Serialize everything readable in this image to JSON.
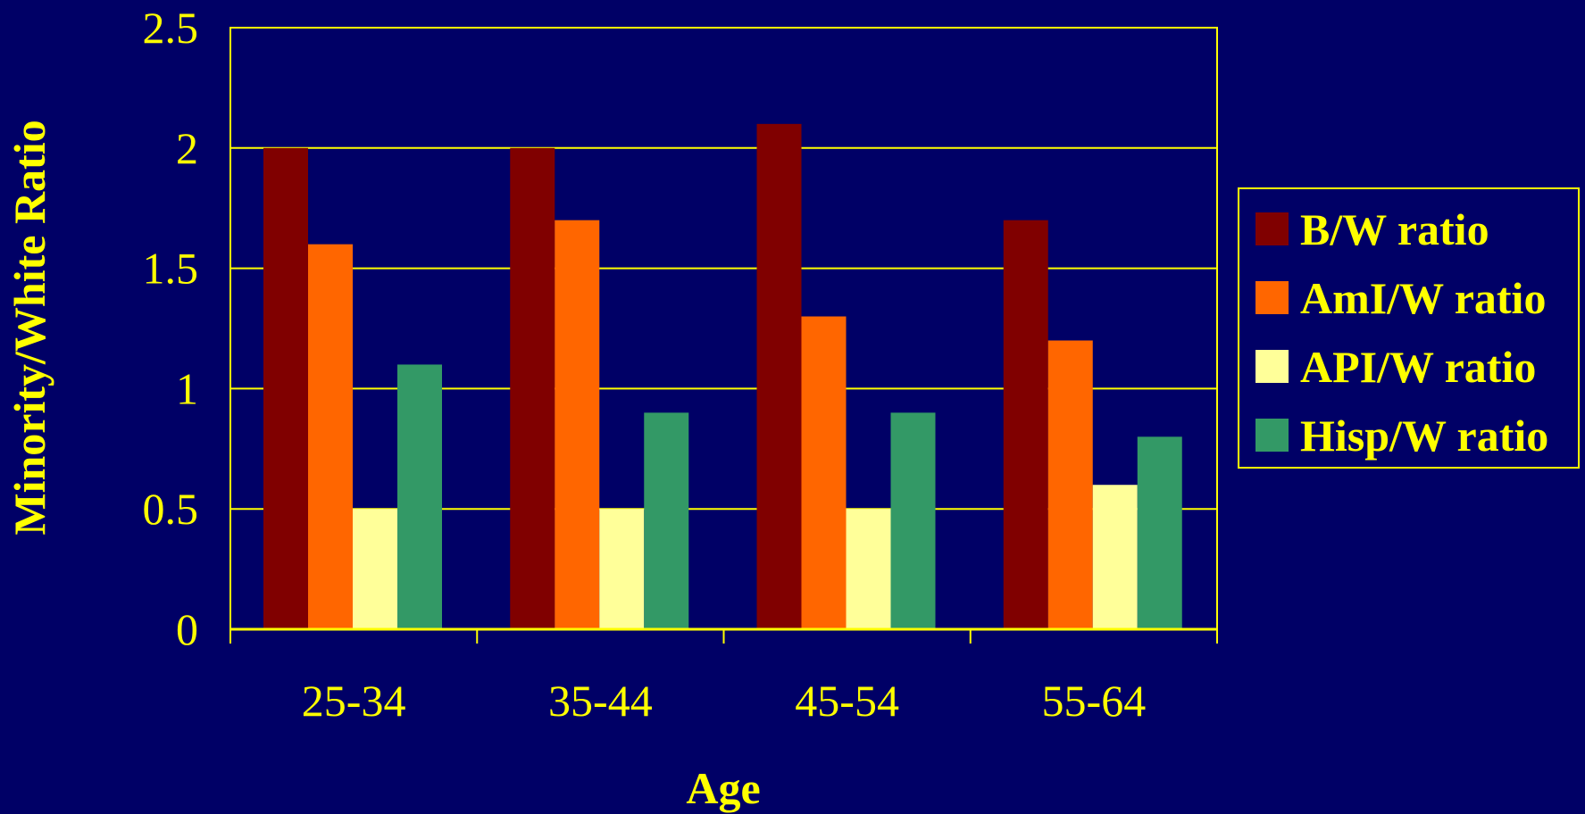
{
  "chart_data": {
    "type": "bar",
    "categories": [
      "25-34",
      "35-44",
      "45-54",
      "55-64"
    ],
    "series": [
      {
        "name": "B/W ratio",
        "values": [
          2.0,
          2.0,
          2.1,
          1.7
        ],
        "color": "#800000"
      },
      {
        "name": "AmI/W ratio",
        "values": [
          1.6,
          1.7,
          1.3,
          1.2
        ],
        "color": "#ff6600"
      },
      {
        "name": "API/W ratio",
        "values": [
          0.5,
          0.5,
          0.5,
          0.6
        ],
        "color": "#ffff99"
      },
      {
        "name": "Hisp/W ratio",
        "values": [
          1.1,
          0.9,
          0.9,
          0.8
        ],
        "color": "#339966"
      }
    ],
    "xlabel": "Age",
    "ylabel": "Minority/White Ratio",
    "ylim": [
      0,
      2.5
    ],
    "yticks": [
      "0",
      "0.5",
      "1",
      "1.5",
      "2",
      "2.5"
    ],
    "grid": true,
    "legend_position": "right",
    "colors": {
      "background": "#000066",
      "axis": "#ffff00",
      "text": "#ffff00"
    }
  }
}
